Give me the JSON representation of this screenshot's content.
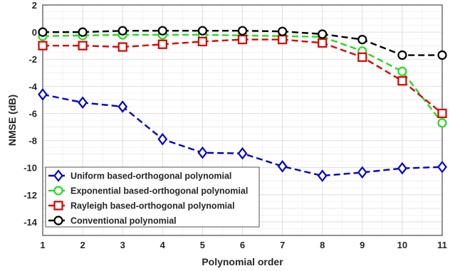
{
  "chart_data": {
    "type": "line",
    "title": "",
    "xlabel": "Polynomial order",
    "ylabel": "NMSE (dB)",
    "x": [
      1,
      2,
      3,
      4,
      5,
      6,
      7,
      8,
      9,
      10,
      11
    ],
    "xlim": [
      1,
      11
    ],
    "ylim": [
      -15,
      2
    ],
    "xticks": [
      "1",
      "2",
      "3",
      "4",
      "5",
      "6",
      "7",
      "8",
      "9",
      "10",
      "11"
    ],
    "yticks": [
      2,
      0,
      -2,
      -4,
      -6,
      -8,
      -10,
      -12,
      -14
    ],
    "ytick_labels": [
      "2",
      "0",
      "-2",
      "-4",
      "-6",
      "-8",
      "-10",
      "-12",
      "-14"
    ],
    "grid": true,
    "legend_position": "bottom-left",
    "series": [
      {
        "name": "Uniform based-orthogonal polynomial",
        "color": "#0000cc",
        "marker": "diamond",
        "values": [
          -4.6,
          -5.2,
          -5.5,
          -7.9,
          -8.9,
          -8.95,
          -9.9,
          -10.6,
          -10.35,
          -10.05,
          -9.95
        ]
      },
      {
        "name": "Exponential based-orthogonal polynomial",
        "color": "#22dd22",
        "marker": "circle",
        "values": [
          -0.3,
          -0.25,
          -0.2,
          -0.2,
          -0.2,
          -0.25,
          -0.3,
          -0.35,
          -1.4,
          -2.9,
          -6.7
        ]
      },
      {
        "name": "Rayleigh based-orthogonal polynomial",
        "color": "#dd0000",
        "marker": "square",
        "values": [
          -1.0,
          -1.0,
          -1.1,
          -0.9,
          -0.7,
          -0.55,
          -0.55,
          -0.8,
          -1.85,
          -3.6,
          -6.0
        ]
      },
      {
        "name": "Conventional polynomial",
        "color": "#000000",
        "marker": "circle",
        "values": [
          0.0,
          0.0,
          0.1,
          0.1,
          0.1,
          0.1,
          0.05,
          -0.15,
          -0.55,
          -1.7,
          -1.7
        ]
      }
    ]
  }
}
